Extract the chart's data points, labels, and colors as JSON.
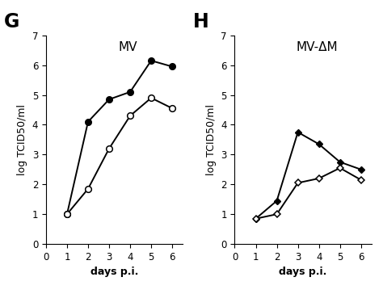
{
  "panel_G": {
    "title": "MV",
    "label": "G",
    "filled_x": [
      1,
      2,
      3,
      4,
      5,
      6
    ],
    "filled_y": [
      1.0,
      4.1,
      4.85,
      5.1,
      6.15,
      5.95
    ],
    "open_x": [
      1,
      2,
      3,
      4,
      5,
      6
    ],
    "open_y": [
      1.0,
      1.85,
      3.2,
      4.3,
      4.9,
      4.55
    ]
  },
  "panel_H": {
    "title": "MV-ΔM",
    "label": "H",
    "filled_x": [
      1,
      2,
      3,
      4,
      5,
      6
    ],
    "filled_y": [
      0.85,
      1.45,
      3.75,
      3.35,
      2.75,
      2.5
    ],
    "open_x": [
      1,
      2,
      3,
      4,
      5,
      6
    ],
    "open_y": [
      0.85,
      1.0,
      2.05,
      2.2,
      2.55,
      2.15
    ]
  },
  "ylabel": "log TCID50/ml",
  "xlabel": "days p.i.",
  "ylim": [
    0,
    7
  ],
  "xlim": [
    0,
    6.5
  ],
  "yticks": [
    0,
    1,
    2,
    3,
    4,
    5,
    6,
    7
  ],
  "xticks": [
    0,
    1,
    2,
    3,
    4,
    5,
    6
  ],
  "bg_color": "#ffffff",
  "line_color": "#000000",
  "markersize": 5.5,
  "linewidth": 1.4,
  "panel_label_fontsize": 17,
  "title_fontsize": 11,
  "axis_label_fontsize": 9,
  "tick_fontsize": 8.5
}
